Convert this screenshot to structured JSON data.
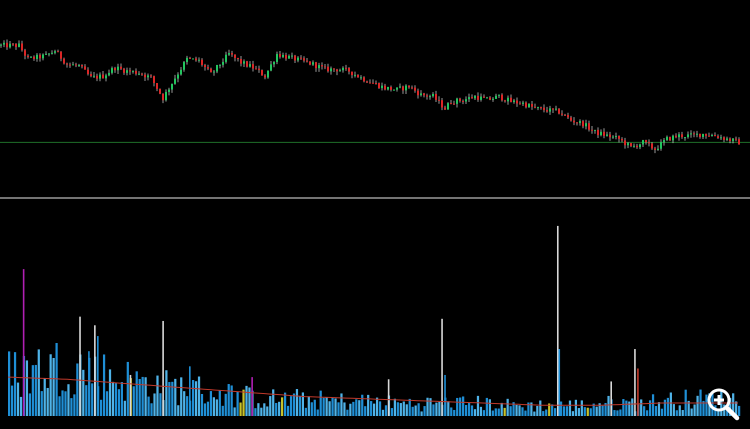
{
  "colors": {
    "background": "#000000",
    "bull": "#22c55e",
    "bear": "#dc2626",
    "wick": "#d8d8d8",
    "reference_line": "#1f6f2a",
    "separator": "#9a9a9a",
    "volume": "#1f8fd6",
    "volume_alt": "#4fb3e8",
    "volume_spike": "#d9d9d9",
    "volume_magenta": "#b01fb3",
    "volume_yellow": "#c8c22a",
    "volume_avg": "#c0392b",
    "zoom_icon": "#ffffff"
  },
  "chart_data": [
    {
      "type": "candlestick",
      "panel": "price",
      "x_range": [
        0,
        246
      ],
      "y_range": [
        0,
        100
      ],
      "grid": false,
      "reference_level": 28,
      "path_keypoints": [
        [
          0,
          85
        ],
        [
          6,
          85
        ],
        [
          9,
          77
        ],
        [
          15,
          79
        ],
        [
          18,
          82
        ],
        [
          22,
          74
        ],
        [
          26,
          73
        ],
        [
          30,
          66
        ],
        [
          34,
          67
        ],
        [
          38,
          72
        ],
        [
          42,
          70
        ],
        [
          46,
          69
        ],
        [
          50,
          66
        ],
        [
          54,
          54
        ],
        [
          58,
          66
        ],
        [
          62,
          77
        ],
        [
          66,
          76
        ],
        [
          70,
          68
        ],
        [
          74,
          76
        ],
        [
          76,
          80
        ],
        [
          80,
          75
        ],
        [
          84,
          72
        ],
        [
          88,
          67
        ],
        [
          92,
          80
        ],
        [
          96,
          78
        ],
        [
          100,
          76
        ],
        [
          104,
          74
        ],
        [
          108,
          71
        ],
        [
          112,
          71
        ],
        [
          116,
          70
        ],
        [
          120,
          66
        ],
        [
          124,
          63
        ],
        [
          128,
          60
        ],
        [
          132,
          59
        ],
        [
          136,
          61
        ],
        [
          140,
          56
        ],
        [
          144,
          55
        ],
        [
          148,
          48
        ],
        [
          150,
          52
        ],
        [
          154,
          53
        ],
        [
          158,
          55
        ],
        [
          162,
          53
        ],
        [
          166,
          55
        ],
        [
          170,
          52
        ],
        [
          174,
          51
        ],
        [
          178,
          48
        ],
        [
          182,
          47
        ],
        [
          186,
          46
        ],
        [
          190,
          41
        ],
        [
          194,
          39
        ],
        [
          198,
          34
        ],
        [
          202,
          32
        ],
        [
          206,
          30
        ],
        [
          210,
          25
        ],
        [
          214,
          28
        ],
        [
          218,
          24
        ],
        [
          222,
          30
        ],
        [
          226,
          32
        ],
        [
          230,
          32
        ],
        [
          234,
          33
        ],
        [
          238,
          32
        ],
        [
          242,
          30
        ],
        [
          246,
          28
        ]
      ]
    },
    {
      "type": "bar",
      "panel": "volume",
      "y_range": [
        0,
        100
      ],
      "grid": false,
      "base_profile": [
        [
          0,
          20
        ],
        [
          10,
          22
        ],
        [
          20,
          24
        ],
        [
          30,
          20
        ],
        [
          40,
          17
        ],
        [
          50,
          14
        ],
        [
          60,
          13
        ],
        [
          70,
          11
        ],
        [
          80,
          9
        ],
        [
          90,
          8
        ],
        [
          100,
          8
        ],
        [
          110,
          7
        ],
        [
          120,
          7
        ],
        [
          130,
          6
        ],
        [
          140,
          6
        ],
        [
          150,
          6
        ],
        [
          160,
          6
        ],
        [
          170,
          5
        ],
        [
          180,
          5
        ],
        [
          190,
          5
        ],
        [
          200,
          6
        ],
        [
          210,
          6
        ],
        [
          220,
          7
        ],
        [
          230,
          8
        ],
        [
          240,
          8
        ],
        [
          246,
          8
        ]
      ],
      "spikes": [
        {
          "x": 5,
          "value": 68,
          "kind": "magenta"
        },
        {
          "x": 24,
          "value": 46,
          "kind": "spike"
        },
        {
          "x": 29,
          "value": 42,
          "kind": "spike"
        },
        {
          "x": 27,
          "value": 30,
          "kind": "normal"
        },
        {
          "x": 30,
          "value": 37,
          "kind": "normal"
        },
        {
          "x": 41,
          "value": 19,
          "kind": "spike"
        },
        {
          "x": 52,
          "value": 44,
          "kind": "spike"
        },
        {
          "x": 61,
          "value": 23,
          "kind": "normal"
        },
        {
          "x": 82,
          "value": 18,
          "kind": "magenta"
        },
        {
          "x": 128,
          "value": 17,
          "kind": "spike"
        },
        {
          "x": 146,
          "value": 45,
          "kind": "spike"
        },
        {
          "x": 147,
          "value": 19,
          "kind": "normal"
        },
        {
          "x": 185,
          "value": 88,
          "kind": "spike"
        },
        {
          "x": 185.5,
          "value": 31,
          "kind": "normal"
        },
        {
          "x": 211,
          "value": 31,
          "kind": "spike"
        },
        {
          "x": 212,
          "value": 22,
          "kind": "red"
        },
        {
          "x": 203,
          "value": 16,
          "kind": "spike"
        }
      ],
      "moving_average": [
        [
          0,
          18
        ],
        [
          20,
          17
        ],
        [
          40,
          15
        ],
        [
          60,
          13
        ],
        [
          80,
          11
        ],
        [
          100,
          9
        ],
        [
          120,
          8
        ],
        [
          140,
          7
        ],
        [
          160,
          6
        ],
        [
          180,
          5
        ],
        [
          200,
          5
        ],
        [
          220,
          6
        ],
        [
          246,
          6
        ]
      ]
    }
  ],
  "toolbar": {
    "zoom_icon": "zoom-in-magnifier-icon"
  }
}
